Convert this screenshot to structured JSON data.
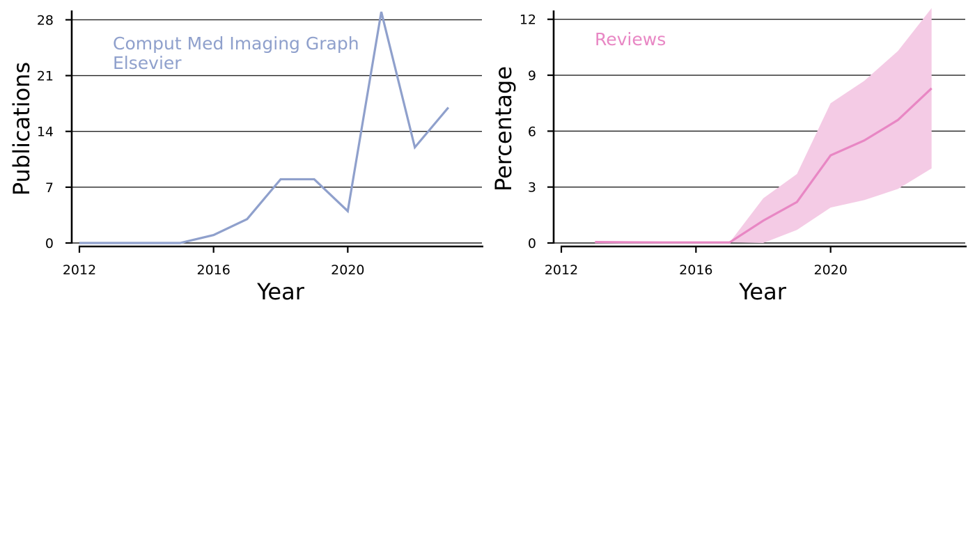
{
  "chart_data": [
    {
      "type": "line",
      "title": "",
      "xlabel": "Year",
      "ylabel": "Publications",
      "xlim": [
        2012,
        2024
      ],
      "ylim": [
        0,
        29
      ],
      "x_ticks": [
        2012,
        2016,
        2020
      ],
      "y_ticks": [
        0,
        7,
        14,
        21,
        28
      ],
      "grid": "horizontal",
      "annotation": {
        "lines": [
          "Comput Med Imaging Graph",
          "Elsevier"
        ],
        "color": "#8fa0cc"
      },
      "series": [
        {
          "color": "#8fa0cc",
          "x": [
            2012,
            2013,
            2014,
            2015,
            2016,
            2017,
            2018,
            2019,
            2020,
            2021,
            2022,
            2023
          ],
          "values": [
            0,
            0,
            0,
            0,
            1,
            3,
            8,
            8,
            4,
            29,
            12,
            17
          ]
        }
      ]
    },
    {
      "type": "area",
      "title": "",
      "xlabel": "Year",
      "ylabel": "Percentage",
      "xlim": [
        2012,
        2024
      ],
      "ylim": [
        0,
        12.4
      ],
      "x_ticks": [
        2012,
        2016,
        2020
      ],
      "y_ticks": [
        0,
        3,
        6,
        9,
        12
      ],
      "grid": "horizontal",
      "annotation": {
        "lines": [
          "Reviews"
        ],
        "color": "#e887c4"
      },
      "series": [
        {
          "color": "#e887c4",
          "band_color": "#f4cbe5",
          "x": [
            2013,
            2014,
            2015,
            2016,
            2017,
            2018,
            2019,
            2020,
            2021,
            2022,
            2023
          ],
          "values": [
            0.05,
            0.04,
            0.03,
            0.03,
            0.03,
            1.2,
            2.2,
            4.7,
            5.5,
            6.6,
            8.3
          ],
          "lower": [
            0.05,
            0.04,
            0.03,
            0.03,
            0.03,
            0.0,
            0.7,
            1.9,
            2.3,
            2.9,
            4.0
          ],
          "upper": [
            0.05,
            0.04,
            0.03,
            0.03,
            0.03,
            2.4,
            3.7,
            7.5,
            8.7,
            10.3,
            12.6
          ]
        }
      ]
    }
  ]
}
